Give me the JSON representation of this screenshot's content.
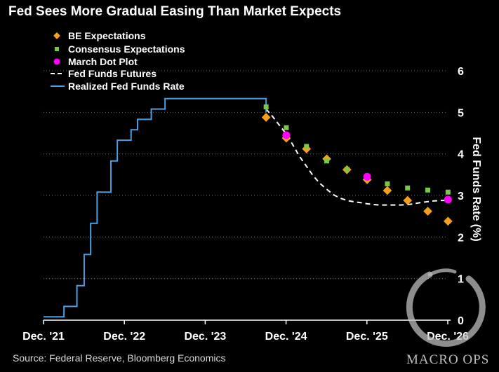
{
  "title": "Fed Sees More Gradual Easing Than Market Expects",
  "source": "Source: Federal Reserve, Bloomberg Economics",
  "watermark": "MACRO OPS",
  "colors": {
    "background": "#000000",
    "realized": "#4a9fe3",
    "be": "#f5a01a",
    "consensus": "#7ac943",
    "dot": "#ff00ff",
    "futures": "#ffffff"
  },
  "chart_data": {
    "type": "line",
    "title": "Fed Sees More Gradual Easing Than Market Expects",
    "ylabel": "Fed Funds Rate (%)",
    "xlabel": "",
    "ylim": [
      0,
      6
    ],
    "xlim": [
      2021.917,
      2026.917
    ],
    "y_ticks": [
      "0",
      "1",
      "2",
      "3",
      "4",
      "5",
      "6"
    ],
    "x_ticks": [
      {
        "value": 2021.917,
        "label": "Dec. '21"
      },
      {
        "value": 2022.917,
        "label": "Dec. '22"
      },
      {
        "value": 2023.917,
        "label": "Dec. '23"
      },
      {
        "value": 2024.917,
        "label": "Dec. '24"
      },
      {
        "value": 2025.917,
        "label": "Dec. '25"
      },
      {
        "value": 2026.917,
        "label": "Dec. '26"
      }
    ],
    "y_axis_position": "right",
    "legend_placement": "top-left",
    "grid": "horizontal dotted",
    "series": [
      {
        "name": "BE Expectations",
        "kind": "diamond",
        "color": "#f5a01a",
        "x": [
          2024.67,
          2024.92,
          2025.17,
          2025.42,
          2025.67,
          2025.92,
          2026.17,
          2026.42,
          2026.67,
          2026.92
        ],
        "y": [
          4.88,
          4.38,
          4.12,
          3.88,
          3.62,
          3.38,
          3.12,
          2.88,
          2.62,
          2.38
        ]
      },
      {
        "name": "Consensus Expectations",
        "kind": "square",
        "color": "#7ac943",
        "x": [
          2024.67,
          2024.92,
          2025.17,
          2025.42,
          2025.67,
          2025.92,
          2026.17,
          2026.42,
          2026.67,
          2026.92
        ],
        "y": [
          5.13,
          4.63,
          4.18,
          3.83,
          3.63,
          3.43,
          3.28,
          3.18,
          3.13,
          3.08
        ]
      },
      {
        "name": "March Dot Plot",
        "kind": "circle",
        "color": "#ff00ff",
        "x": [
          2024.92,
          2025.92,
          2026.92
        ],
        "y": [
          4.45,
          3.45,
          2.9
        ]
      },
      {
        "name": "Fed Funds Futures",
        "kind": "dashed-line",
        "color": "#ffffff",
        "x": [
          2024.67,
          2024.75,
          2024.83,
          2024.92,
          2025.0,
          2025.08,
          2025.17,
          2025.25,
          2025.33,
          2025.42,
          2025.5,
          2025.58,
          2025.67,
          2025.75,
          2025.83,
          2025.92,
          2026.0,
          2026.08,
          2026.17,
          2026.25,
          2026.33,
          2026.42,
          2026.5,
          2026.58,
          2026.67,
          2026.75,
          2026.83,
          2026.92
        ],
        "y": [
          5.08,
          4.9,
          4.7,
          4.48,
          4.22,
          3.95,
          3.7,
          3.48,
          3.3,
          3.15,
          3.02,
          2.94,
          2.88,
          2.85,
          2.83,
          2.8,
          2.78,
          2.77,
          2.77,
          2.77,
          2.77,
          2.78,
          2.8,
          2.83,
          2.85,
          2.87,
          2.88,
          2.88
        ]
      },
      {
        "name": "Realized Fed Funds Rate",
        "kind": "step-line",
        "color": "#4a9fe3",
        "x": [
          2021.917,
          2022.083,
          2022.17,
          2022.25,
          2022.33,
          2022.42,
          2022.5,
          2022.58,
          2022.67,
          2022.75,
          2022.83,
          2022.92,
          2023.0,
          2023.08,
          2023.17,
          2023.25,
          2023.33,
          2023.42,
          2023.5,
          2023.58,
          2023.67,
          2023.75,
          2023.83,
          2023.92,
          2024.0,
          2024.08,
          2024.17,
          2024.25,
          2024.33,
          2024.42,
          2024.5,
          2024.58,
          2024.67
        ],
        "y": [
          0.08,
          0.08,
          0.33,
          0.33,
          0.83,
          1.58,
          2.33,
          3.08,
          3.08,
          3.83,
          4.33,
          4.33,
          4.58,
          4.83,
          4.83,
          5.08,
          5.08,
          5.33,
          5.33,
          5.33,
          5.33,
          5.33,
          5.33,
          5.33,
          5.33,
          5.33,
          5.33,
          5.33,
          5.33,
          5.33,
          5.33,
          5.33,
          5.0
        ]
      }
    ]
  }
}
